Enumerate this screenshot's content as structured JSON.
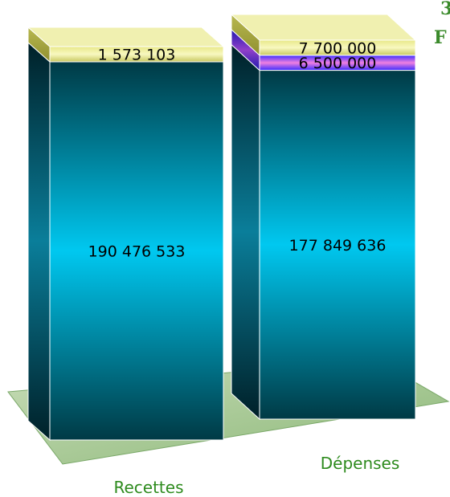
{
  "colors": {
    "category_label": "#2e8b1e",
    "floor": "#a8c890",
    "edge_text": "#3a8a2a",
    "text": "#000000"
  },
  "edge_text": {
    "line1": "3",
    "line2": "F"
  },
  "chart_data": {
    "type": "bar",
    "stacked": true,
    "style": "3d",
    "categories": [
      "Recettes",
      "Dépenses"
    ],
    "series": [
      {
        "values": [
          190476533,
          177849636
        ],
        "labels": [
          "190 476 533",
          "177 849 636"
        ],
        "color": "#00c8f0"
      },
      {
        "values": [
          0,
          6500000
        ],
        "labels": [
          "",
          "6 500 000"
        ],
        "color": "#f080e0"
      },
      {
        "values": [
          1573103,
          7700000
        ],
        "labels": [
          "1 573 103",
          "7 700 000"
        ],
        "color": "#f0f0a0"
      }
    ],
    "legend": "none",
    "grid": false,
    "title": "",
    "xlabel": "",
    "ylabel": ""
  }
}
